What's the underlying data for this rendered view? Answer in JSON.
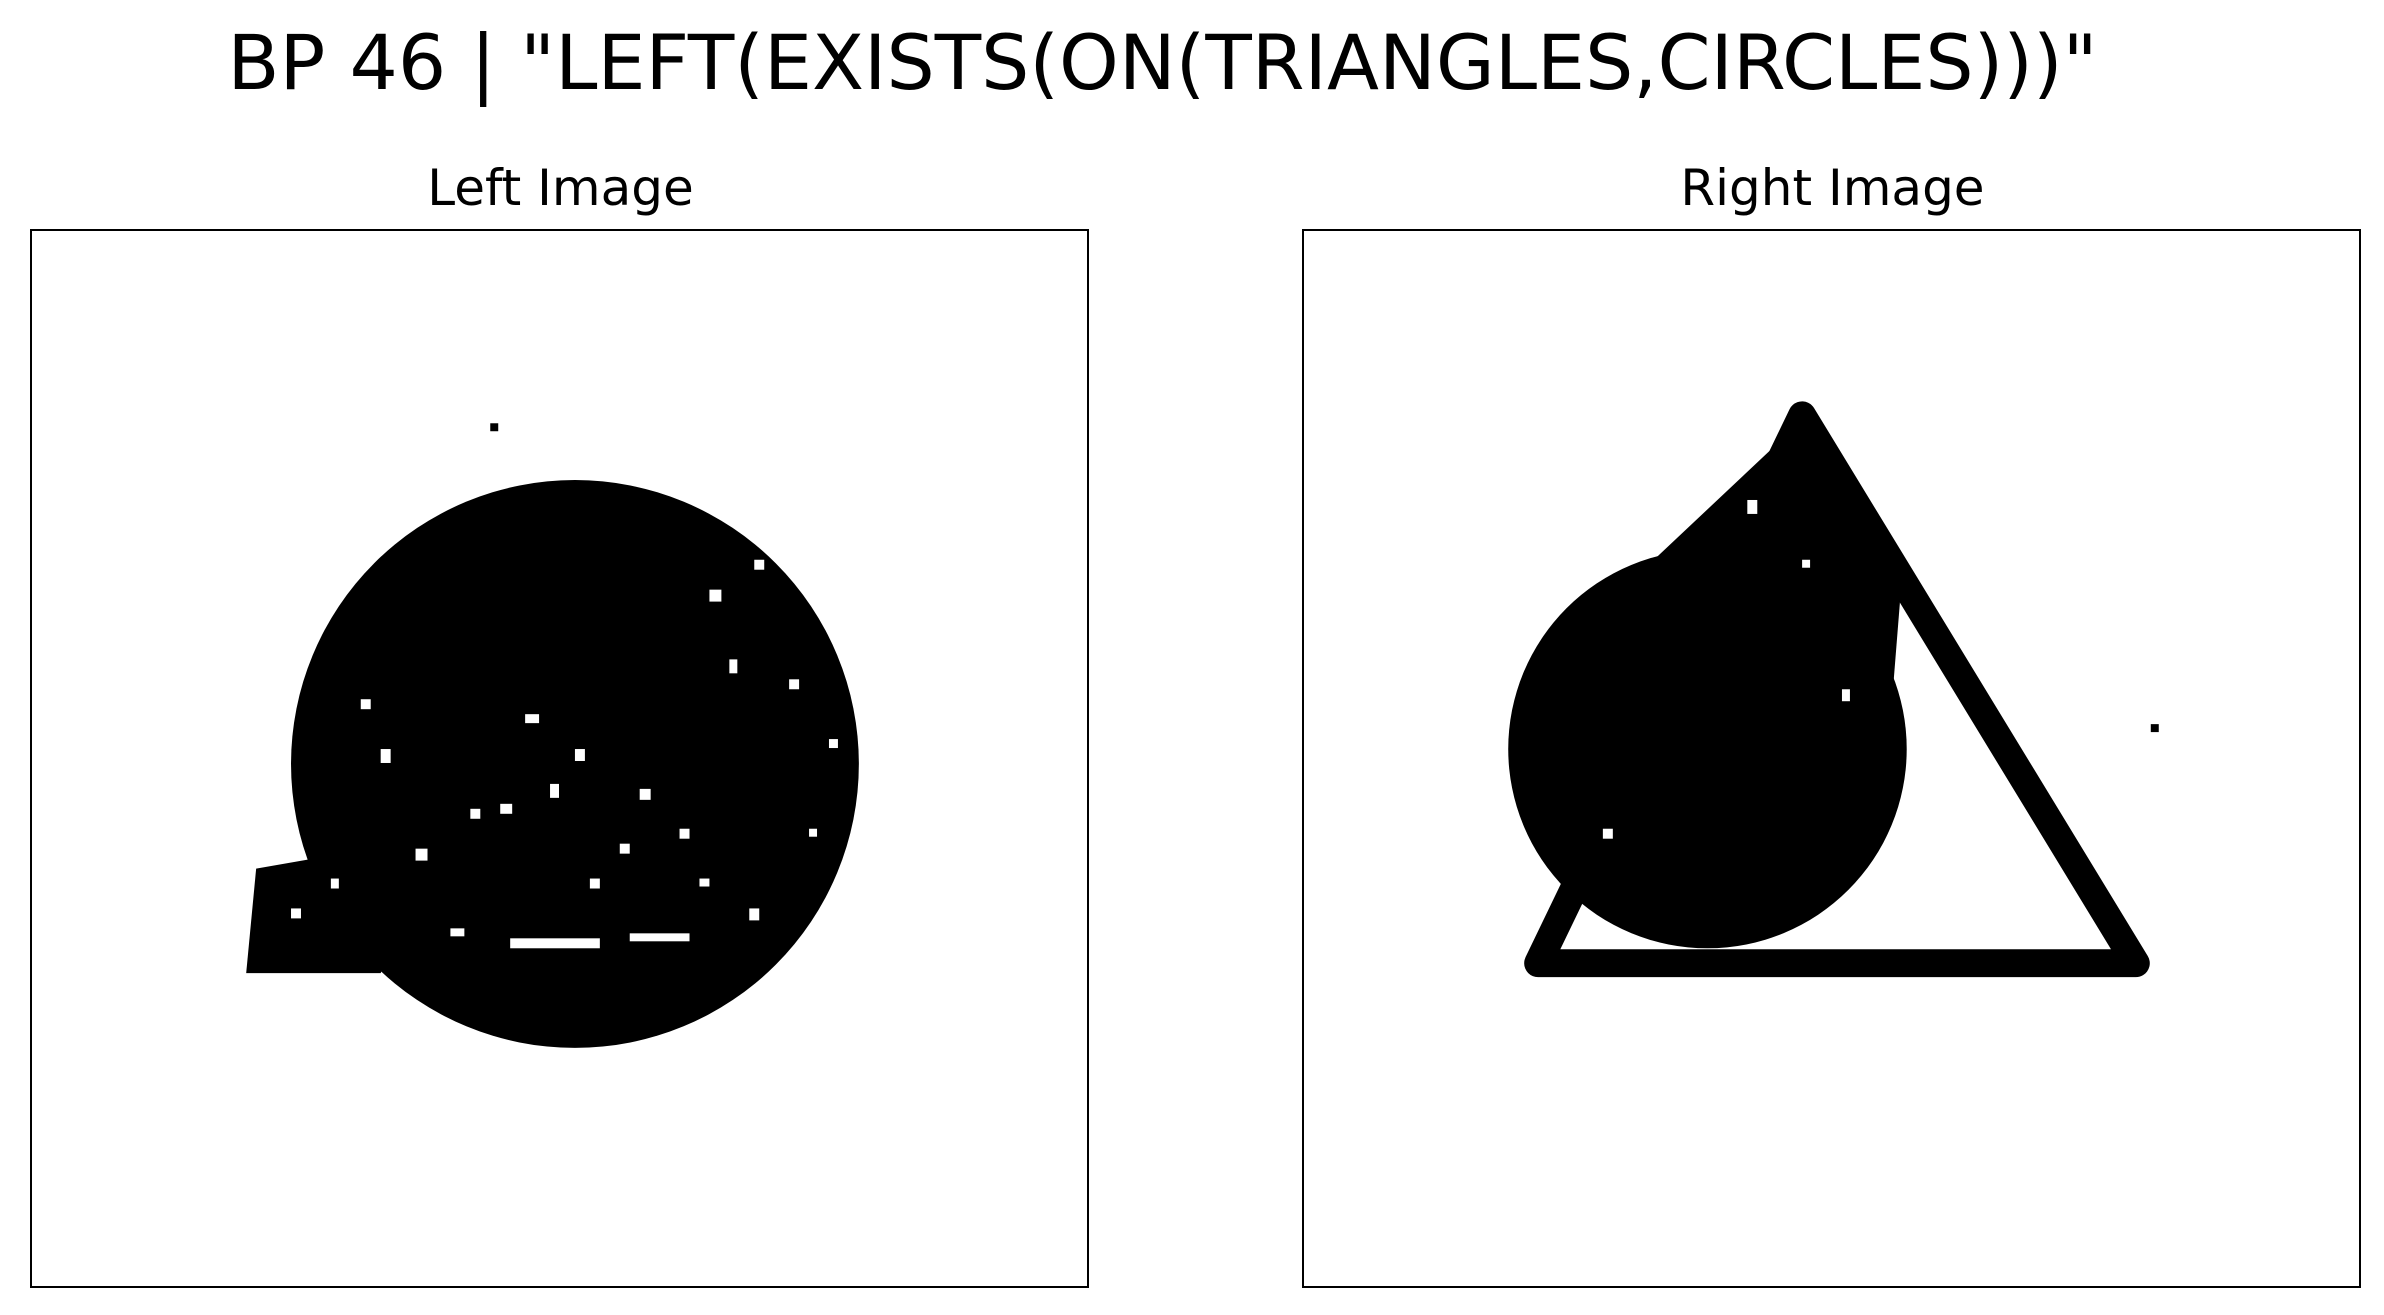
{
  "figure": {
    "title": "BP 46 | \"LEFT(EXISTS(ON(TRIANGLES,CIRCLES)))\""
  },
  "panels": [
    {
      "label": "Left Image"
    },
    {
      "label": "Right Image"
    }
  ],
  "colors": {
    "ink": "#000000",
    "background": "#ffffff"
  }
}
